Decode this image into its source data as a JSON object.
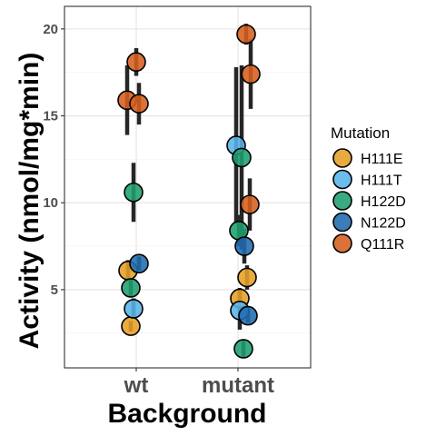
{
  "chart_data": {
    "type": "scatter",
    "xlabel": "Background",
    "ylabel": "Activity (nmol/mg*min)",
    "categories": [
      "wt",
      "mutant"
    ],
    "yticks": [
      5,
      10,
      15,
      20
    ],
    "ylim": [
      0.5,
      21.3
    ],
    "grid": true,
    "legend": {
      "title": "Mutation",
      "position": "right"
    },
    "series": [
      {
        "name": "H111E",
        "color": "#E69F26",
        "points": [
          {
            "x": "wt",
            "y": 6.1,
            "yerr": 0.6
          },
          {
            "x": "wt",
            "y": 2.9,
            "yerr": 0.3
          },
          {
            "x": "mutant",
            "y": 5.7,
            "yerr": 0.7
          },
          {
            "x": "mutant",
            "y": 4.5,
            "yerr": 0.6
          }
        ]
      },
      {
        "name": "H111T",
        "color": "#56B4E9",
        "points": [
          {
            "x": "wt",
            "y": 3.9,
            "yerr": 0.6
          },
          {
            "x": "mutant",
            "y": 13.3,
            "yerr": 4.5
          },
          {
            "x": "mutant",
            "y": 3.8,
            "yerr": 1.1
          }
        ]
      },
      {
        "name": "H122D",
        "color": "#1F9E6F",
        "points": [
          {
            "x": "wt",
            "y": 10.6,
            "yerr": 1.7
          },
          {
            "x": "wt",
            "y": 5.1,
            "yerr": 0.5
          },
          {
            "x": "mutant",
            "y": 12.6,
            "yerr": 5.3
          },
          {
            "x": "mutant",
            "y": 8.4,
            "yerr": 0.9
          },
          {
            "x": "mutant",
            "y": 1.6,
            "yerr": 0.5
          }
        ]
      },
      {
        "name": "N122D",
        "color": "#1F6BAF",
        "points": [
          {
            "x": "wt",
            "y": 6.5,
            "yerr": 0.4
          },
          {
            "x": "mutant",
            "y": 7.5,
            "yerr": 1.0
          },
          {
            "x": "mutant",
            "y": 3.5,
            "yerr": 0.4
          }
        ]
      },
      {
        "name": "Q111R",
        "color": "#D55E1F",
        "points": [
          {
            "x": "wt",
            "y": 18.1,
            "yerr": 0.8
          },
          {
            "x": "wt",
            "y": 15.9,
            "yerr": 2.0
          },
          {
            "x": "wt",
            "y": 15.7,
            "yerr": 1.2
          },
          {
            "x": "mutant",
            "y": 19.7,
            "yerr": 0.6
          },
          {
            "x": "mutant",
            "y": 17.4,
            "yerr": 2.0
          },
          {
            "x": "mutant",
            "y": 9.9,
            "yerr": 1.5
          }
        ]
      }
    ]
  }
}
